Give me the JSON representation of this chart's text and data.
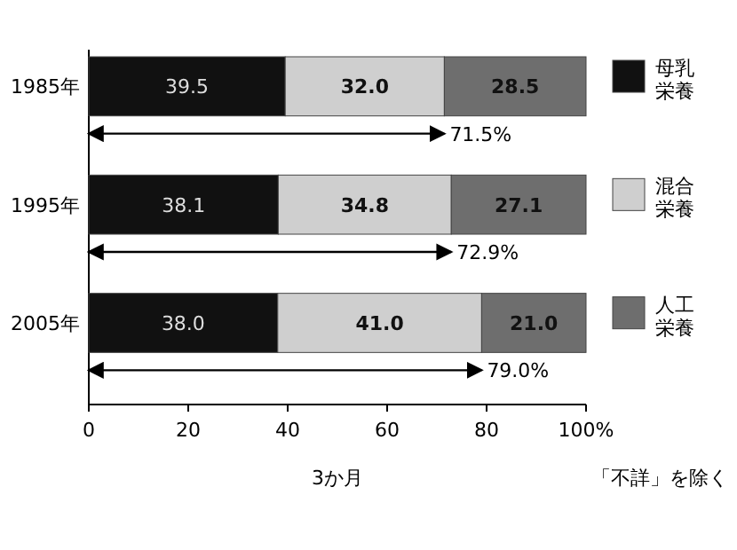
{
  "chart_data": {
    "type": "bar",
    "orientation": "horizontal",
    "stacked": true,
    "categories": [
      "1985年",
      "1995年",
      "2005年"
    ],
    "series": [
      {
        "name": "母乳栄養",
        "color": "#111111",
        "values": [
          39.5,
          38.1,
          38.0
        ],
        "value_labels": [
          "39.5",
          "38.1",
          "38.0"
        ]
      },
      {
        "name": "混合栄養",
        "color": "#cfcfcf",
        "values": [
          32.0,
          34.8,
          41.0
        ],
        "value_labels": [
          "32.0",
          "34.8",
          "41.0"
        ]
      },
      {
        "name": "人工栄養",
        "color": "#6e6e6e",
        "values": [
          28.5,
          27.1,
          21.0
        ],
        "value_labels": [
          "28.5",
          "27.1",
          "21.0"
        ]
      }
    ],
    "xlim": [
      0,
      100
    ],
    "xticks": [
      0,
      20,
      40,
      60,
      {
        "value": 80,
        "label": "80"
      },
      {
        "value": 100,
        "label": "100%"
      }
    ],
    "xlabel": "3か月",
    "legend": "right",
    "grid": false,
    "annotations": [
      {
        "text": "71.5%",
        "x": 71.5,
        "y": "1985年"
      },
      {
        "text": "72.9%",
        "x": 72.9,
        "y": "1995年"
      },
      {
        "text": "79.0%",
        "x": 79.0,
        "y": "2005年"
      },
      "「不詳」を除く"
    ]
  }
}
